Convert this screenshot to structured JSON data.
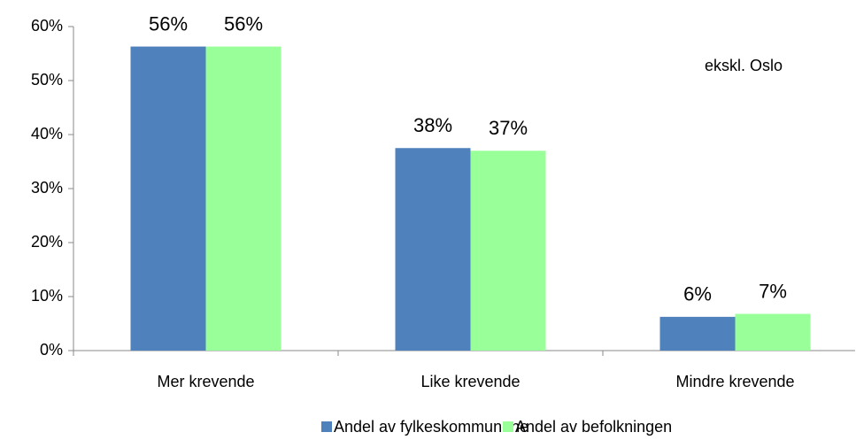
{
  "chart_data": {
    "type": "bar",
    "annotation": "ekskl. Oslo",
    "categories": [
      "Mer krevende",
      "Like krevende",
      "Mindre krevende"
    ],
    "series": [
      {
        "name": "Andel av fylkeskommunene",
        "color": "#4f81bd",
        "values": [
          56.3,
          37.5,
          6.25
        ],
        "value_labels": [
          "56%",
          "38%",
          "6%"
        ]
      },
      {
        "name": "Andel av befolkningen",
        "color": "#99ff99",
        "values": [
          56.3,
          37.0,
          6.8
        ],
        "value_labels": [
          "56%",
          "37%",
          "7%"
        ]
      }
    ],
    "ylim": [
      0,
      60
    ],
    "yticks": [
      {
        "value": 0,
        "label": "0%"
      },
      {
        "value": 10,
        "label": "10%"
      },
      {
        "value": 20,
        "label": "20%"
      },
      {
        "value": 30,
        "label": "30%"
      },
      {
        "value": 40,
        "label": "40%"
      },
      {
        "value": 50,
        "label": "50%"
      },
      {
        "value": 60,
        "label": "60%"
      }
    ],
    "legend": "bottom"
  }
}
